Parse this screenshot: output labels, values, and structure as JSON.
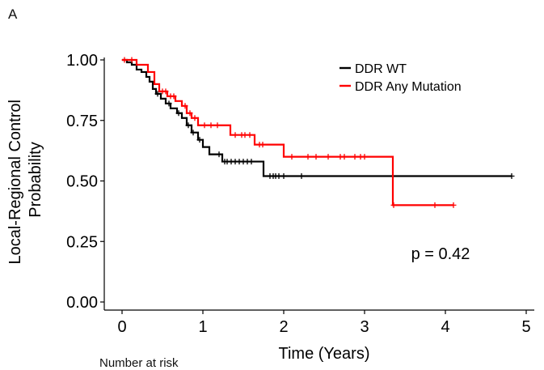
{
  "panel_label": "A",
  "risk_table_caption": "Number at risk",
  "chart_data": {
    "type": "line",
    "title": "",
    "xlabel": "Time (Years)",
    "ylabel_lines": [
      "Local-Regional Control",
      "Probability"
    ],
    "xlim": [
      -0.2,
      5.1
    ],
    "ylim": [
      0,
      1.0
    ],
    "x_ticks": [
      0,
      1,
      2,
      3,
      4,
      5
    ],
    "x_tick_labels": [
      "0",
      "1",
      "2",
      "3",
      "4",
      "5"
    ],
    "y_ticks": [
      0.0,
      0.25,
      0.5,
      0.75,
      1.0
    ],
    "y_tick_labels": [
      "0.00",
      "0.25",
      "0.50",
      "0.75",
      "1.00"
    ],
    "grid": false,
    "legend_position": "top-right",
    "annotation": "p = 0.42",
    "series": [
      {
        "name": "DDR WT",
        "color": "#000000",
        "steps": [
          [
            0.0,
            1.0
          ],
          [
            0.06,
            0.99
          ],
          [
            0.12,
            0.98
          ],
          [
            0.18,
            0.96
          ],
          [
            0.24,
            0.95
          ],
          [
            0.3,
            0.93
          ],
          [
            0.34,
            0.91
          ],
          [
            0.38,
            0.88
          ],
          [
            0.42,
            0.86
          ],
          [
            0.48,
            0.84
          ],
          [
            0.54,
            0.82
          ],
          [
            0.6,
            0.8
          ],
          [
            0.68,
            0.78
          ],
          [
            0.74,
            0.76
          ],
          [
            0.8,
            0.73
          ],
          [
            0.86,
            0.7
          ],
          [
            0.94,
            0.67
          ],
          [
            1.0,
            0.64
          ],
          [
            1.08,
            0.61
          ],
          [
            1.24,
            0.58
          ],
          [
            1.75,
            0.52
          ],
          [
            4.82,
            0.52
          ]
        ],
        "censor_x": [
          0.44,
          0.58,
          0.7,
          0.82,
          0.88,
          0.96,
          1.2,
          1.27,
          1.3,
          1.35,
          1.4,
          1.45,
          1.5,
          1.55,
          1.6,
          1.83,
          1.87,
          1.9,
          1.94,
          2.0,
          2.22,
          4.82
        ]
      },
      {
        "name": "DDR Any Mutation",
        "color": "#ff0000",
        "steps": [
          [
            0.0,
            1.0
          ],
          [
            0.18,
            0.98
          ],
          [
            0.32,
            0.95
          ],
          [
            0.4,
            0.9
          ],
          [
            0.46,
            0.87
          ],
          [
            0.56,
            0.85
          ],
          [
            0.66,
            0.83
          ],
          [
            0.74,
            0.81
          ],
          [
            0.8,
            0.78
          ],
          [
            0.86,
            0.76
          ],
          [
            0.94,
            0.73
          ],
          [
            1.34,
            0.69
          ],
          [
            1.64,
            0.65
          ],
          [
            2.0,
            0.6
          ],
          [
            3.35,
            0.4
          ],
          [
            4.1,
            0.4
          ]
        ],
        "censor_x": [
          0.03,
          0.12,
          0.5,
          0.54,
          0.6,
          0.64,
          0.78,
          0.84,
          0.9,
          1.02,
          1.1,
          1.18,
          1.4,
          1.48,
          1.52,
          1.58,
          1.7,
          1.74,
          2.1,
          2.3,
          2.4,
          2.55,
          2.7,
          2.75,
          2.88,
          2.95,
          3.0,
          3.36,
          3.87,
          4.1
        ]
      }
    ]
  }
}
